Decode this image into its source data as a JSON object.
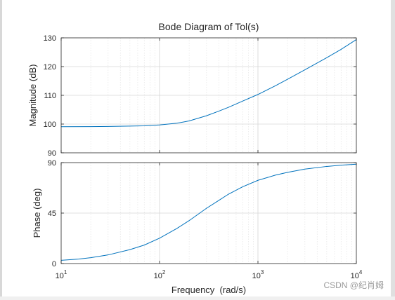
{
  "chart_data": {
    "type": "line",
    "title": "Bode Diagram of Tol(s)",
    "xlabel": "Frequency  (rad/s)",
    "x_scale": "log",
    "xlim": [
      10,
      10000
    ],
    "x_ticks": [
      {
        "base": "10",
        "exp": "1"
      },
      {
        "base": "10",
        "exp": "2"
      },
      {
        "base": "10",
        "exp": "3"
      },
      {
        "base": "10",
        "exp": "4"
      }
    ],
    "grid": true,
    "line_color": "#0072BD",
    "panels": [
      {
        "ylabel": "Magnitude (dB)",
        "ylim": [
          90,
          130
        ],
        "y_ticks": [
          "90",
          "100",
          "110",
          "120",
          "130"
        ],
        "series": [
          {
            "x": [
              10,
              20,
              30,
              50,
              70,
              100,
              150,
              200,
              300,
              400,
              500,
              700,
              1000,
              1500,
              2000,
              3000,
              5000,
              7000,
              10000
            ],
            "values": [
              99.1,
              99.13,
              99.17,
              99.3,
              99.4,
              99.7,
              100.3,
              101.1,
              102.9,
              104.5,
              105.8,
              108.0,
              110.3,
              113.3,
              115.6,
              118.9,
              123.1,
              126.0,
              129.4
            ]
          }
        ]
      },
      {
        "ylabel": "Phase (deg)",
        "ylim": [
          0,
          90
        ],
        "y_ticks": [
          "0",
          "45",
          "90"
        ],
        "series": [
          {
            "x": [
              10,
              15,
              20,
              30,
              50,
              70,
              100,
              150,
              200,
              300,
              400,
              500,
              700,
              1000,
              1500,
              2000,
              3000,
              5000,
              7000,
              10000
            ],
            "values": [
              2.9,
              4.0,
              5.2,
              7.7,
              12.4,
              16.5,
              22.6,
              31.3,
              38.3,
              49.3,
              56.3,
              61.8,
              68.5,
              74.2,
              78.8,
              81.3,
              84.2,
              86.6,
              87.7,
              88.6
            ]
          }
        ]
      }
    ]
  },
  "watermark": "CSDN @纪肖姆"
}
